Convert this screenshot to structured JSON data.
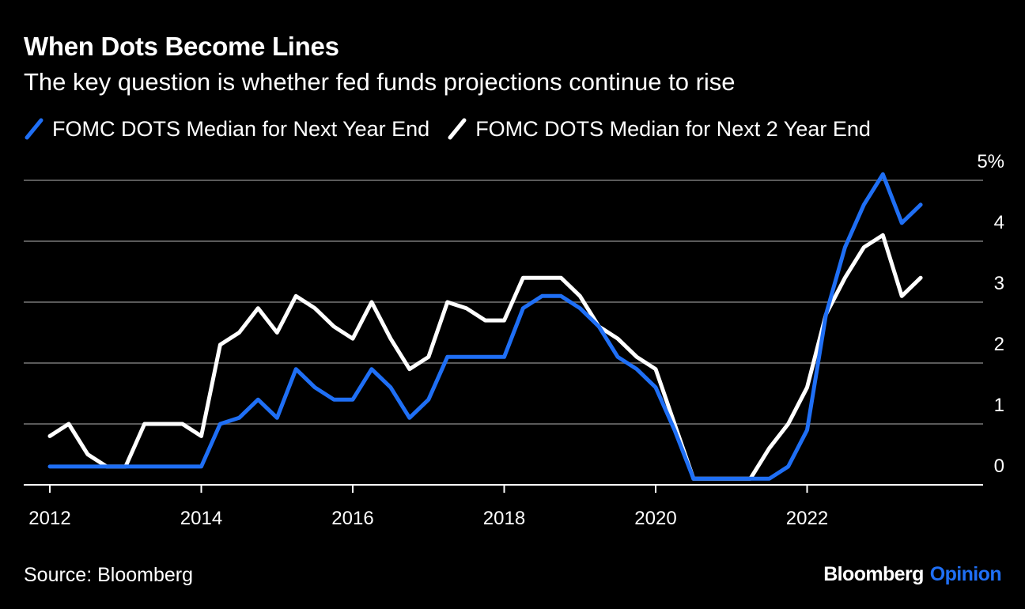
{
  "header": {
    "title": "When Dots Become Lines",
    "subtitle": "The key question is whether fed funds projections continue to rise"
  },
  "footer": {
    "source": "Source: Bloomberg",
    "brand_primary": "Bloomberg",
    "brand_secondary": "Opinion"
  },
  "colors": {
    "background": "#000000",
    "series_next_year": "#1f6ff5",
    "series_next_2_year": "#ffffff",
    "grid": "#5a5a5a",
    "brand_accent": "#1f6ff5"
  },
  "chart_data": {
    "type": "line",
    "title": "When Dots Become Lines",
    "subtitle": "The key question is whether fed funds projections continue to rise",
    "xlabel": "",
    "ylabel": "",
    "xlim": [
      2012,
      2024
    ],
    "ylim": [
      0,
      5
    ],
    "y_axis_position": "right",
    "x_ticks": [
      "2012",
      "2014",
      "2016",
      "2018",
      "2020",
      "2022"
    ],
    "y_ticks": [
      "0",
      "1",
      "2",
      "3",
      "4",
      "5%"
    ],
    "grid": true,
    "legend_position": "top-left",
    "series": [
      {
        "name": "FOMC DOTS Median for Next Year End",
        "color": "#1f6ff5",
        "x": [
          2012.0,
          2012.25,
          2012.5,
          2012.75,
          2013.0,
          2013.25,
          2013.5,
          2013.75,
          2014.0,
          2014.25,
          2014.5,
          2014.75,
          2015.0,
          2015.25,
          2015.5,
          2015.75,
          2016.0,
          2016.25,
          2016.5,
          2016.75,
          2017.0,
          2017.25,
          2017.5,
          2017.75,
          2018.0,
          2018.25,
          2018.5,
          2018.75,
          2019.0,
          2019.25,
          2019.5,
          2019.75,
          2020.0,
          2020.25,
          2020.5,
          2020.75,
          2021.0,
          2021.25,
          2021.5,
          2021.75,
          2022.0,
          2022.25,
          2022.5,
          2022.75,
          2023.0,
          2023.25,
          2023.5
        ],
        "values": [
          0.3,
          0.3,
          0.3,
          0.3,
          0.3,
          0.3,
          0.3,
          0.3,
          0.3,
          1.0,
          1.1,
          1.4,
          1.1,
          1.9,
          1.6,
          1.4,
          1.4,
          1.9,
          1.6,
          1.1,
          1.4,
          2.1,
          2.1,
          2.1,
          2.1,
          2.9,
          3.1,
          3.1,
          2.9,
          2.6,
          2.1,
          1.9,
          1.6,
          0.9,
          0.1,
          0.1,
          0.1,
          0.1,
          0.1,
          0.3,
          0.9,
          2.8,
          3.9,
          4.6,
          5.1,
          4.3,
          4.6
        ]
      },
      {
        "name": "FOMC DOTS Median for Next 2 Year End",
        "color": "#ffffff",
        "x": [
          2012.0,
          2012.25,
          2012.5,
          2012.75,
          2013.0,
          2013.25,
          2013.5,
          2013.75,
          2014.0,
          2014.25,
          2014.5,
          2014.75,
          2015.0,
          2015.25,
          2015.5,
          2015.75,
          2016.0,
          2016.25,
          2016.5,
          2016.75,
          2017.0,
          2017.25,
          2017.5,
          2017.75,
          2018.0,
          2018.25,
          2018.5,
          2018.75,
          2019.0,
          2019.25,
          2019.5,
          2019.75,
          2020.0,
          2020.25,
          2020.5,
          2020.75,
          2021.0,
          2021.25,
          2021.5,
          2021.75,
          2022.0,
          2022.25,
          2022.5,
          2022.75,
          2023.0,
          2023.25,
          2023.5
        ],
        "values": [
          0.8,
          1.0,
          0.5,
          0.3,
          0.3,
          1.0,
          1.0,
          1.0,
          0.8,
          2.3,
          2.5,
          2.9,
          2.5,
          3.1,
          2.9,
          2.6,
          2.4,
          3.0,
          2.4,
          1.9,
          2.1,
          3.0,
          2.9,
          2.7,
          2.7,
          3.4,
          3.4,
          3.4,
          3.1,
          2.6,
          2.4,
          2.1,
          1.9,
          1.0,
          0.1,
          0.1,
          0.1,
          0.1,
          0.6,
          1.0,
          1.6,
          2.8,
          3.4,
          3.9,
          4.1,
          3.1,
          3.4
        ]
      }
    ]
  }
}
